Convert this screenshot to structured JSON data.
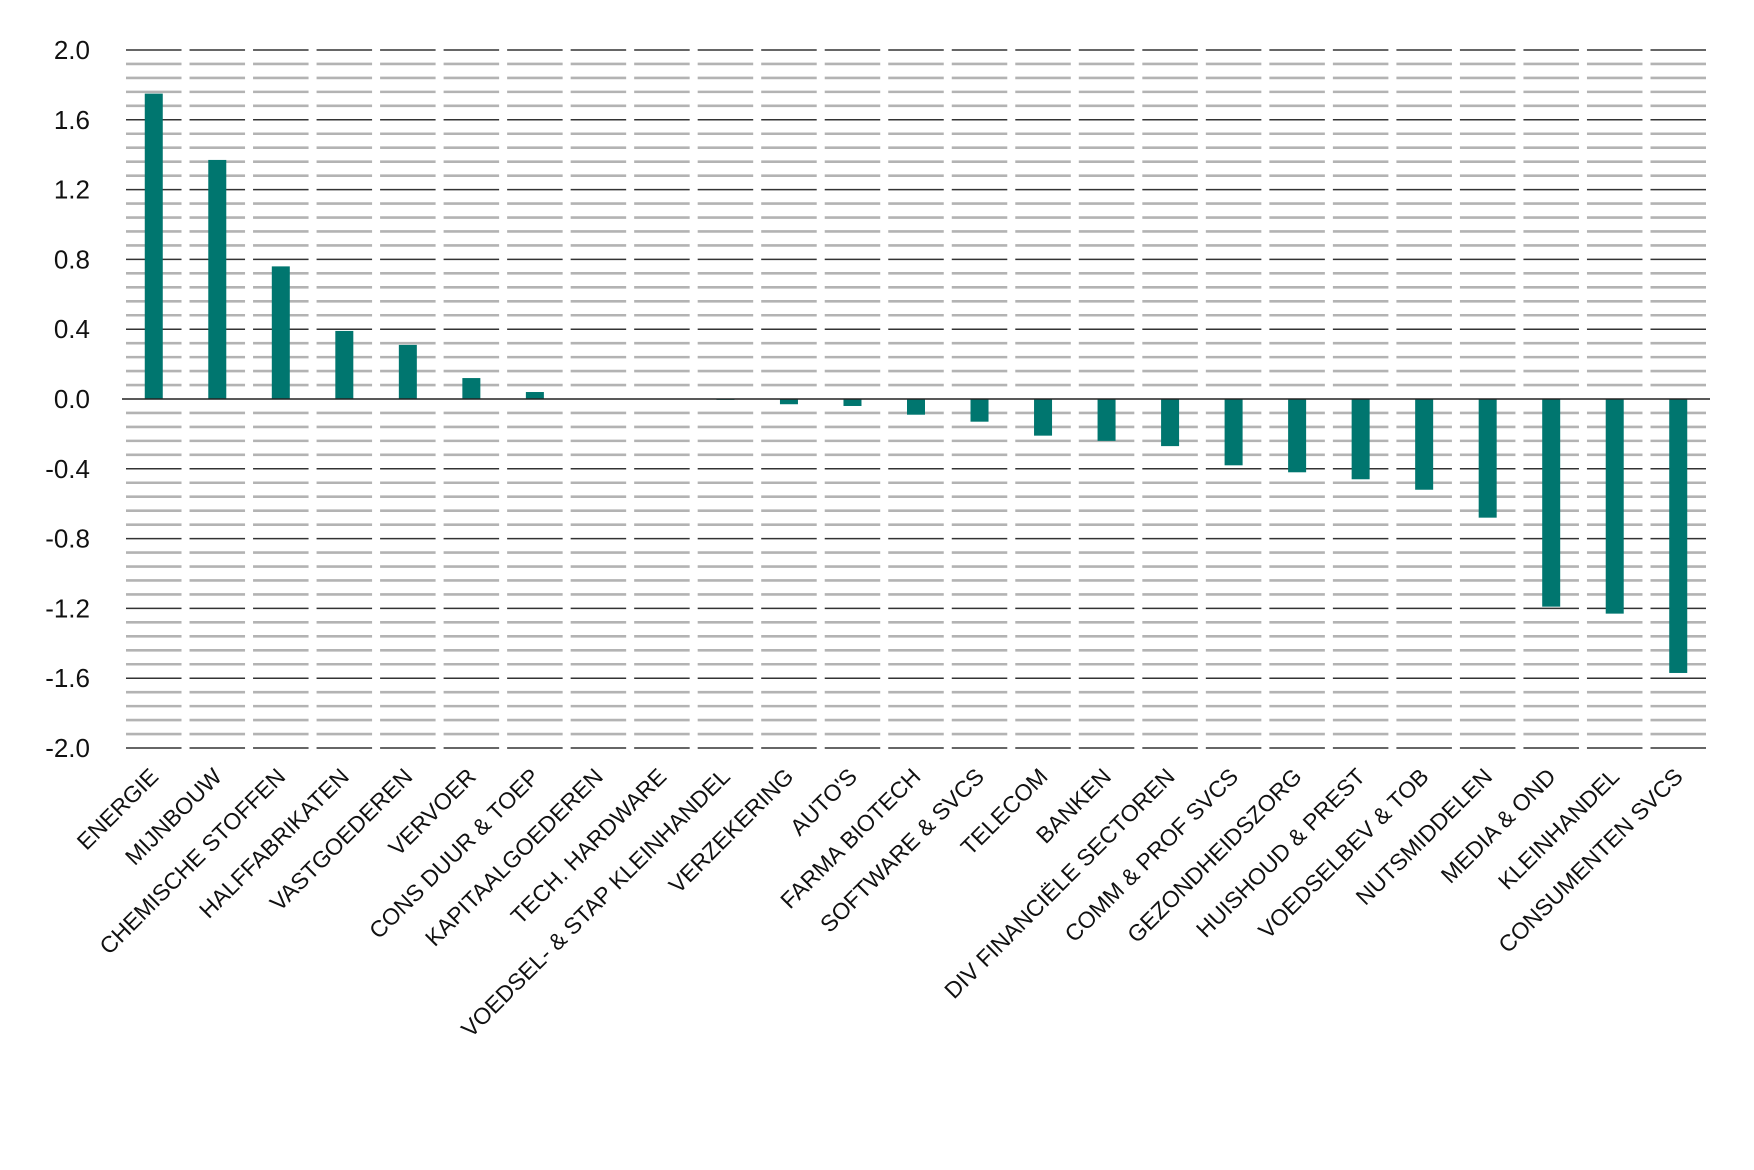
{
  "chart_data": {
    "type": "bar",
    "title": "",
    "xlabel": "",
    "ylabel": "",
    "ylim": [
      -2.0,
      2.0
    ],
    "yticks": [
      "2.0",
      "1.6",
      "1.2",
      "0.8",
      "0.4",
      "0.0",
      "-0.4",
      "-0.8",
      "-1.2",
      "-1.6",
      "-2.0"
    ],
    "ytick_values": [
      2.0,
      1.6,
      1.2,
      0.8,
      0.4,
      0.0,
      -0.4,
      -0.8,
      -1.2,
      -1.6,
      -2.0
    ],
    "grid": true,
    "legend": "none",
    "categories": [
      "ENERGIE",
      "MIJNBOUW",
      "CHEMISCHE STOFFEN",
      "HALFFABRIKATEN",
      "VASTGOEDEREN",
      "VERVOER",
      "CONS DUUR & TOEP",
      "KAPITAALGOEDEREN",
      "TECH. HARDWARE",
      "VOEDSEL- & STAP KLEINHANDEL",
      "VERZEKERING",
      "AUTO'S",
      "FARMA BIOTECH",
      "SOFTWARE & SVCS",
      "TELECOM",
      "BANKEN",
      "DIV FINANCIËLE SECTOREN",
      "COMM & PROF SVCS",
      "GEZONDHEIDSZORG",
      "HUISHOUD & PREST",
      "VOEDSELBEV & TOB",
      "NUTSMIDDELEN",
      "MEDIA & OND",
      "KLEINHANDEL",
      "CONSUMENTEN SVCS"
    ],
    "values": [
      1.75,
      1.37,
      0.76,
      0.39,
      0.31,
      0.12,
      0.04,
      0.0,
      0.0,
      -0.005,
      -0.03,
      -0.04,
      -0.09,
      -0.13,
      -0.21,
      -0.24,
      -0.27,
      -0.38,
      -0.42,
      -0.46,
      -0.52,
      -0.68,
      -1.19,
      -1.23,
      -1.57
    ],
    "bar_color": "#00766f",
    "major_grid_color": "#333333",
    "minor_grid_color": "#b3b3b3"
  }
}
